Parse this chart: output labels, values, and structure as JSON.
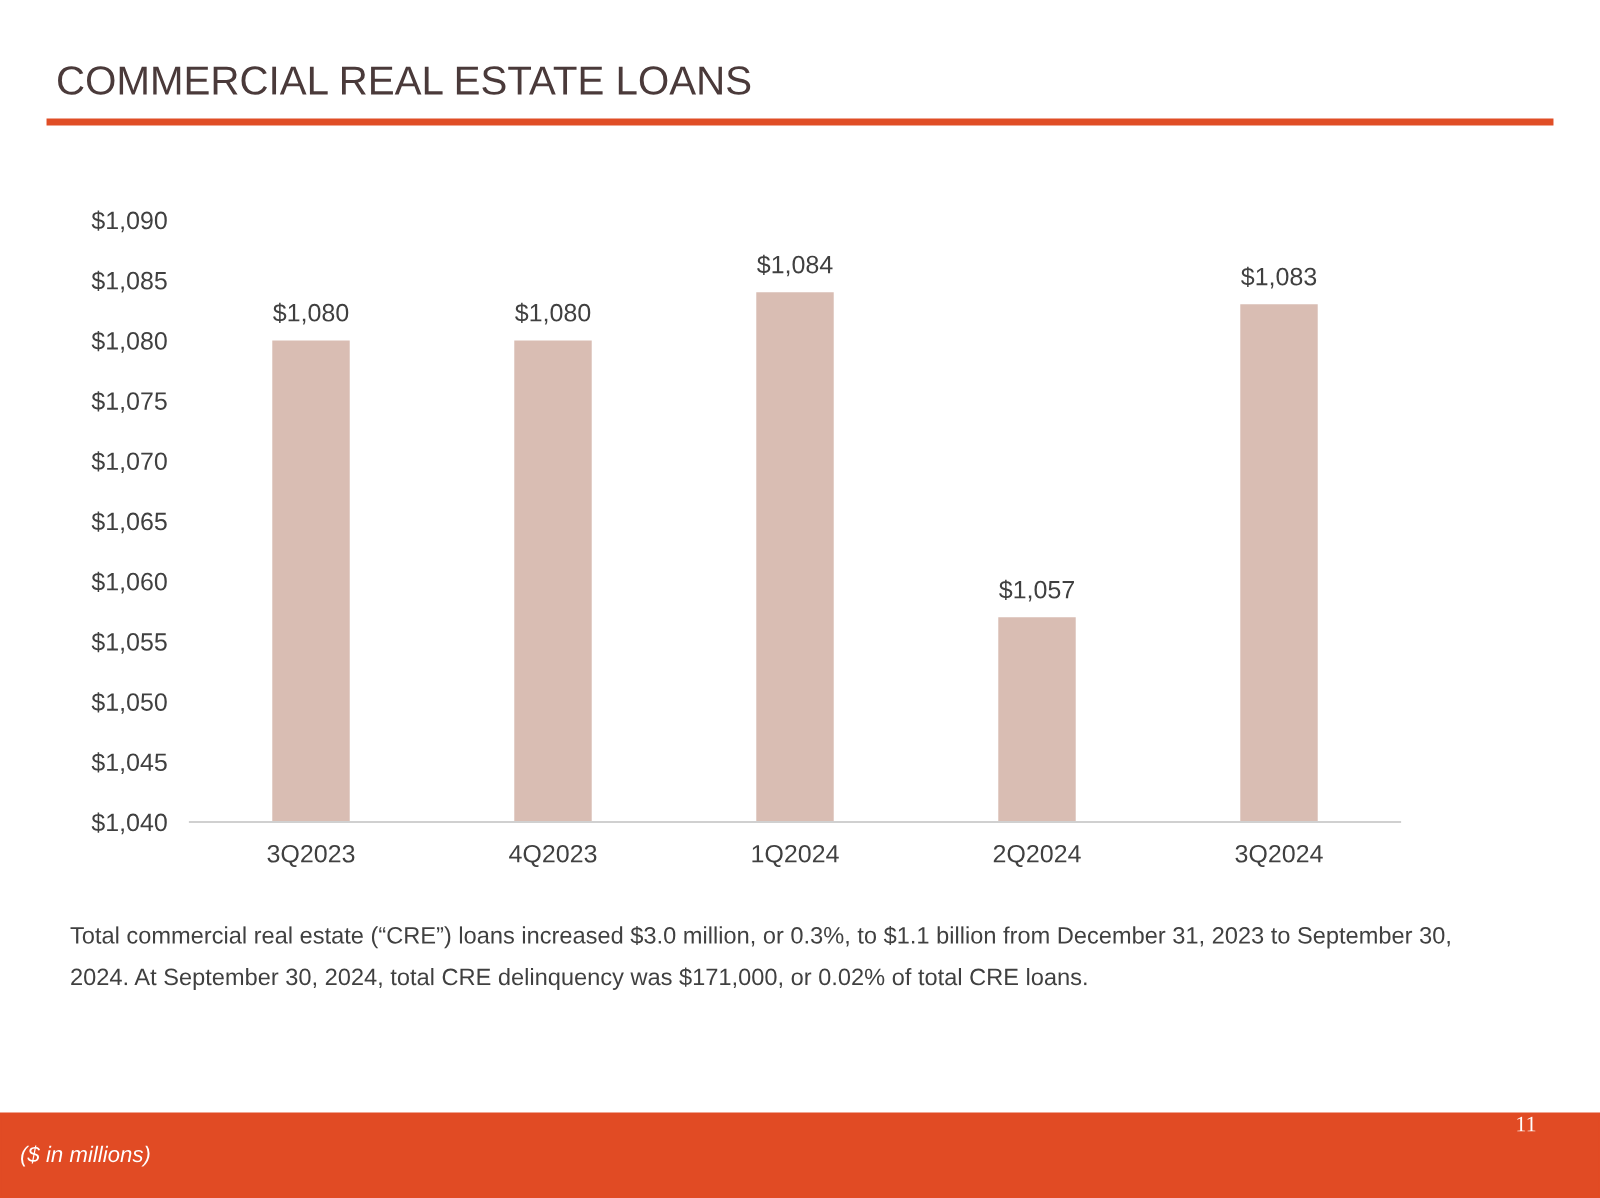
{
  "chart_data": {
    "type": "bar",
    "title": "COMMERCIAL REAL ESTATE LOANS",
    "categories": [
      "3Q2023",
      "4Q2023",
      "1Q2024",
      "2Q2024",
      "3Q2024"
    ],
    "values": [
      1080,
      1080,
      1084,
      1057,
      1083
    ],
    "value_labels": [
      "$1,080",
      "$1,080",
      "$1,084",
      "$1,057",
      "$1,083"
    ],
    "color": "#d9bdb3",
    "ylim": [
      1040,
      1090
    ],
    "yticks": [
      {
        "value": 1040,
        "label": "$1,040"
      },
      {
        "value": 1045,
        "label": "$1,045"
      },
      {
        "value": 1050,
        "label": "$1,050"
      },
      {
        "value": 1055,
        "label": "$1,055"
      },
      {
        "value": 1060,
        "label": "$1,060"
      },
      {
        "value": 1065,
        "label": "$1,065"
      },
      {
        "value": 1070,
        "label": "$1,070"
      },
      {
        "value": 1075,
        "label": "$1,075"
      },
      {
        "value": 1080,
        "label": "$1,080"
      },
      {
        "value": 1085,
        "label": "$1,085"
      },
      {
        "value": 1090,
        "label": "$1,090"
      }
    ],
    "grid": false,
    "annotations": [
      "Total commercial real estate (“CRE”) loans increased $3.0 million, or 0.3%, to $1.1 billion from December 31, 2023 to September 30, 2024. At September 30, 2024, total CRE delinquency was $171,000, or 0.02% of total CRE loans.",
      "($ in millions)",
      "11"
    ]
  }
}
